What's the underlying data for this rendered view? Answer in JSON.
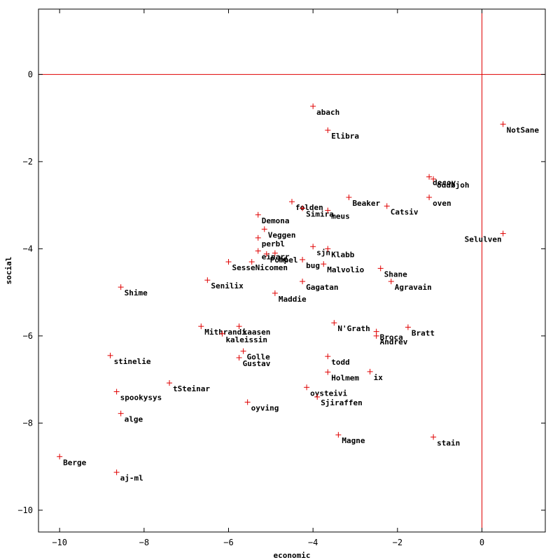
{
  "chart_data": {
    "type": "scatter",
    "title": "",
    "xlabel": "economic",
    "ylabel": "social",
    "xlim": [
      -10.5,
      1.5
    ],
    "ylim": [
      -10.5,
      1.5
    ],
    "x_ticks": [
      -10,
      -8,
      -6,
      -4,
      -2,
      0
    ],
    "y_ticks": [
      -10,
      -8,
      -6,
      -4,
      -2,
      0
    ],
    "grid": false,
    "legend": "none",
    "reference_lines": {
      "x": 0,
      "y": 0
    },
    "colors": {
      "marker": "#e00000",
      "reference": "#e00000",
      "axis": "#000000"
    },
    "points": [
      {
        "label": "abach",
        "x": -4.0,
        "y": -0.73
      },
      {
        "label": "Elibra",
        "x": -3.65,
        "y": -1.28
      },
      {
        "label": "NotSane",
        "x": 0.5,
        "y": -1.14
      },
      {
        "label": "decoy",
        "x": -1.25,
        "y": -2.35
      },
      {
        "label": "oddbjoh",
        "x": -1.15,
        "y": -2.4
      },
      {
        "label": "oven",
        "x": -1.25,
        "y": -2.82
      },
      {
        "label": "folden",
        "x": -4.5,
        "y": -2.92
      },
      {
        "label": "Simira",
        "x": -4.25,
        "y": -3.07
      },
      {
        "label": "Beaker",
        "x": -3.15,
        "y": -2.82
      },
      {
        "label": "Catsiv",
        "x": -2.25,
        "y": -3.02
      },
      {
        "label": "meus",
        "x": -3.65,
        "y": -3.12
      },
      {
        "label": "Selulven",
        "x": 0.5,
        "y": -3.65
      },
      {
        "label": "Demona",
        "x": -5.3,
        "y": -3.22
      },
      {
        "label": "Veggen",
        "x": -5.15,
        "y": -3.55
      },
      {
        "label": "perbl",
        "x": -5.3,
        "y": -3.75
      },
      {
        "label": "sjn",
        "x": -4.0,
        "y": -3.95
      },
      {
        "label": "he",
        "x": -4.9,
        "y": -4.1
      },
      {
        "label": "Klabb",
        "x": -3.65,
        "y": -4.0
      },
      {
        "label": "einarr",
        "x": -5.3,
        "y": -4.05
      },
      {
        "label": "Pompel",
        "x": -5.1,
        "y": -4.12
      },
      {
        "label": "Sesse",
        "x": -6.0,
        "y": -4.3
      },
      {
        "label": "Nicomen",
        "x": -5.45,
        "y": -4.3
      },
      {
        "label": "bug",
        "x": -4.25,
        "y": -4.25
      },
      {
        "label": "Malvolio",
        "x": -3.75,
        "y": -4.35
      },
      {
        "label": "Shane",
        "x": -2.4,
        "y": -4.45
      },
      {
        "label": "Agravain",
        "x": -2.15,
        "y": -4.75
      },
      {
        "label": "Senilix",
        "x": -6.5,
        "y": -4.72
      },
      {
        "label": "Gagatan",
        "x": -4.25,
        "y": -4.75
      },
      {
        "label": "Maddie",
        "x": -4.9,
        "y": -5.02
      },
      {
        "label": "Shime",
        "x": -8.55,
        "y": -4.88
      },
      {
        "label": "Mithrandi",
        "x": -6.65,
        "y": -5.78
      },
      {
        "label": "kaasen",
        "x": -5.75,
        "y": -5.78
      },
      {
        "label": "kaleissin",
        "x": -6.15,
        "y": -5.95
      },
      {
        "label": "N'Grath",
        "x": -3.5,
        "y": -5.7
      },
      {
        "label": "Broca",
        "x": -2.5,
        "y": -5.9
      },
      {
        "label": "Bratt",
        "x": -1.75,
        "y": -5.8
      },
      {
        "label": "Andrev",
        "x": -2.5,
        "y": -6.0
      },
      {
        "label": "Golle",
        "x": -5.65,
        "y": -6.35
      },
      {
        "label": "Gustav",
        "x": -5.75,
        "y": -6.5
      },
      {
        "label": "stinelie",
        "x": -8.8,
        "y": -6.45
      },
      {
        "label": "todd",
        "x": -3.65,
        "y": -6.47
      },
      {
        "label": "ix",
        "x": -2.65,
        "y": -6.82
      },
      {
        "label": "Holmem",
        "x": -3.65,
        "y": -6.83
      },
      {
        "label": "tSteinar",
        "x": -7.4,
        "y": -7.08
      },
      {
        "label": "oysteivi",
        "x": -4.15,
        "y": -7.18
      },
      {
        "label": "Sjiraffen",
        "x": -3.9,
        "y": -7.4
      },
      {
        "label": "spookysys",
        "x": -8.65,
        "y": -7.28
      },
      {
        "label": "oyving",
        "x": -5.55,
        "y": -7.52
      },
      {
        "label": "alge",
        "x": -8.55,
        "y": -7.78
      },
      {
        "label": "Magne",
        "x": -3.4,
        "y": -8.27
      },
      {
        "label": "stain",
        "x": -1.15,
        "y": -8.32
      },
      {
        "label": "Berge",
        "x": -10.0,
        "y": -8.77
      },
      {
        "label": "aj-ml",
        "x": -8.65,
        "y": -9.13
      }
    ]
  }
}
